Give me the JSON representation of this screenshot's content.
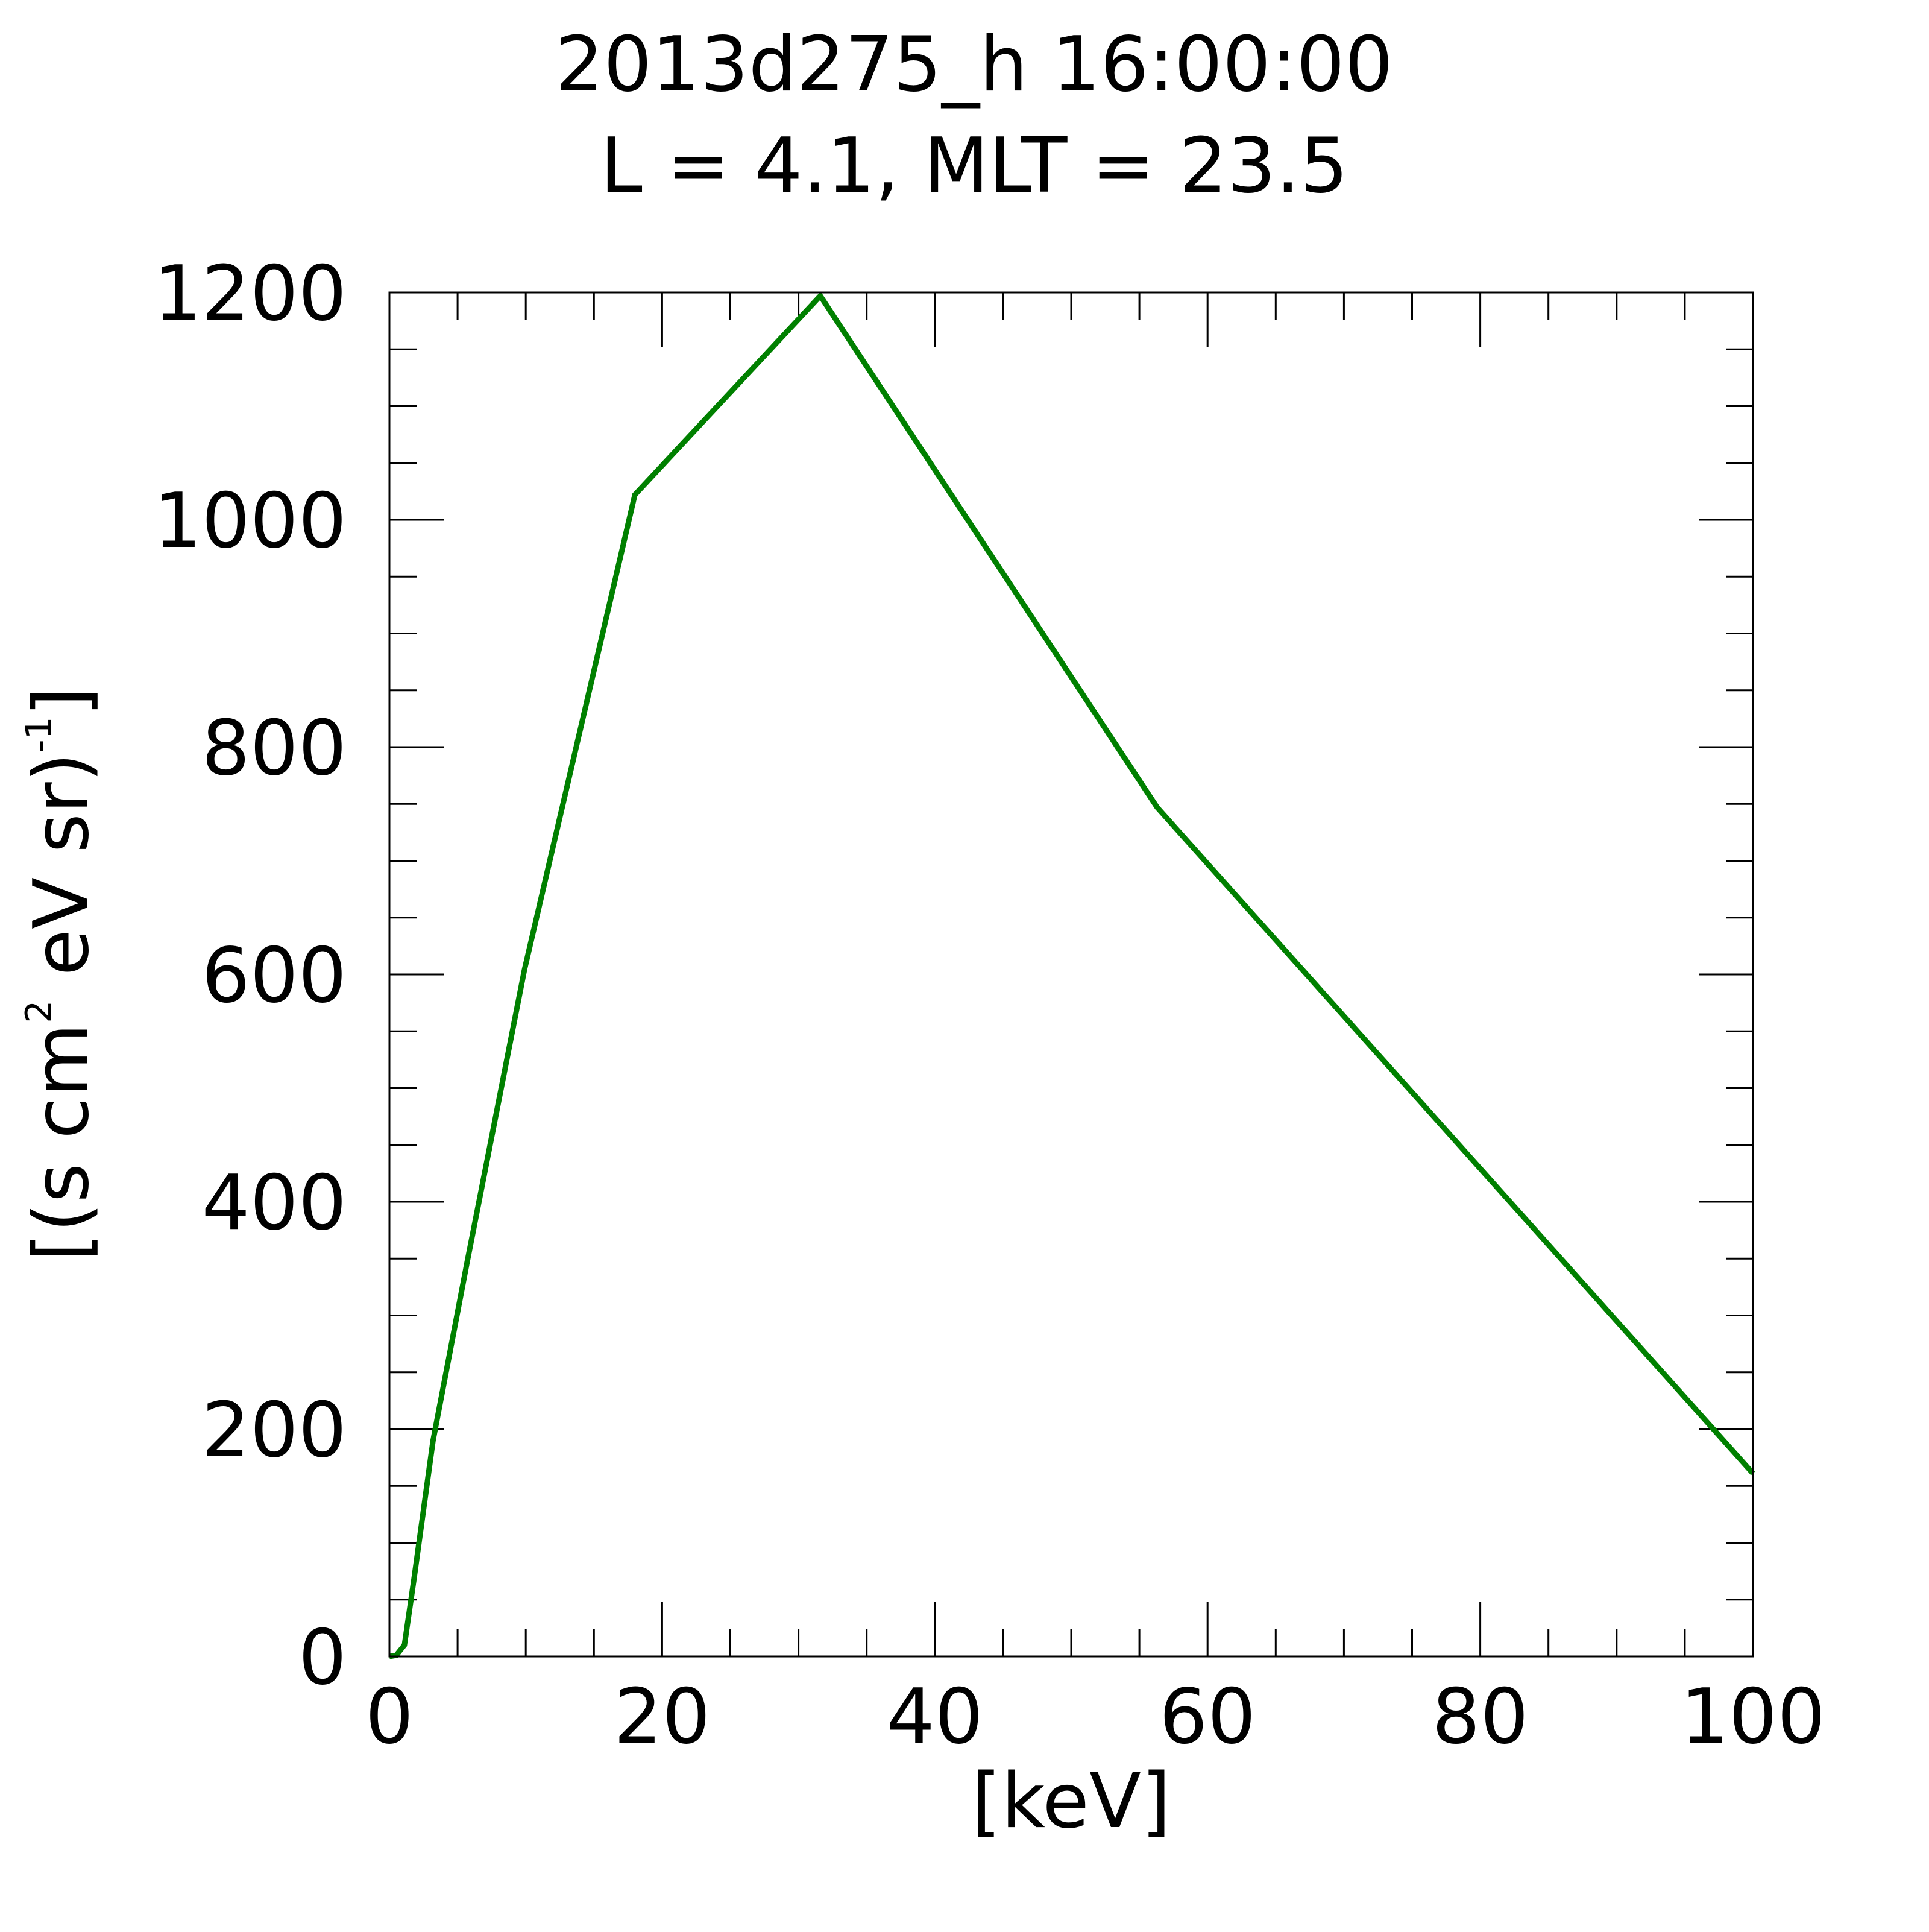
{
  "chart_data": {
    "type": "line",
    "title": "2013d275_h  16:00:00",
    "subtitle": "L = 4.1, MLT = 23.5",
    "xlabel": "[keV]",
    "ylabel_parts": [
      "[(s cm",
      "2",
      " eV sr)",
      "-1",
      "]"
    ],
    "xlim": [
      0,
      100
    ],
    "ylim": [
      0,
      1200
    ],
    "xticks": [
      0,
      20,
      40,
      60,
      80,
      100
    ],
    "yticks": [
      0,
      200,
      400,
      600,
      800,
      1000,
      1200
    ],
    "x_minor_step": 5,
    "y_minor_step": 50,
    "grid": false,
    "line_color": "#008000",
    "series": [
      {
        "x": [
          0,
          0.5,
          1.1,
          1.8,
          3.2,
          5.7,
          9.9,
          18.0,
          31.6,
          56.3,
          100
        ],
        "y": [
          0,
          1,
          10,
          68,
          190,
          347,
          604,
          1022,
          1197,
          747,
          161
        ]
      }
    ]
  }
}
